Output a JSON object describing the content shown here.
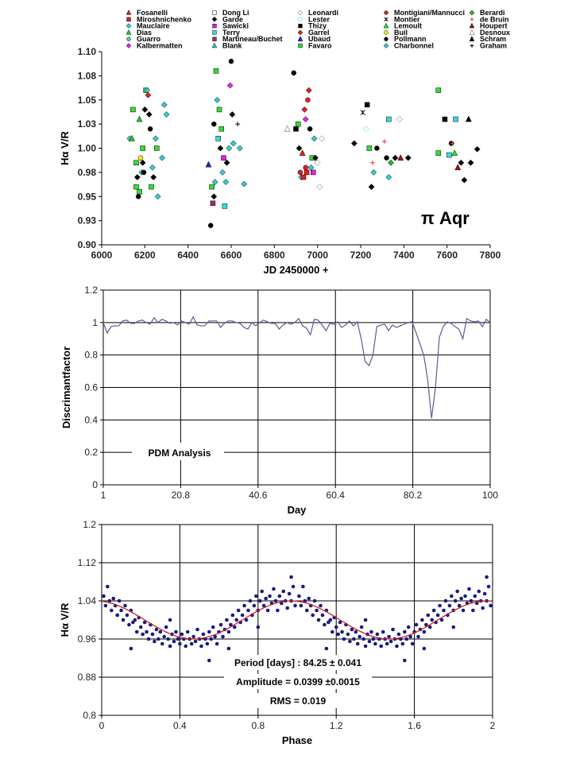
{
  "colors": {
    "pdm_line": "#5b5b9a",
    "phase_points": "#1a1a80",
    "fit_line": "#cc2222",
    "grid": "#000000"
  },
  "chart_data": [
    {
      "type": "scatter",
      "xlabel": "JD 2450000 +",
      "ylabel": "Hα V/R",
      "annotation": "π Aqr",
      "xlim": [
        6000,
        7800
      ],
      "ylim": [
        0.9,
        1.1
      ],
      "xticks": [
        "6000",
        "6200",
        "6400",
        "6600",
        "6800",
        "7000",
        "7200",
        "7400",
        "7600",
        "7800"
      ],
      "yticks": [
        "0.90",
        "0.93",
        "0.95",
        "0.98",
        "1.00",
        "1.03",
        "1.05",
        "1.08",
        "1.10"
      ],
      "grid": false,
      "legend_position": "top",
      "observers": [
        {
          "name": "Fosanelli",
          "shape": "triangle",
          "color": "#e02020"
        },
        {
          "name": "Miroshnichenko",
          "shape": "square",
          "color": "#e02020"
        },
        {
          "name": "Mauclaire",
          "shape": "diamond",
          "color": "#33cccc"
        },
        {
          "name": "Dias",
          "shape": "triangle",
          "color": "#22cc22"
        },
        {
          "name": "Guarro",
          "shape": "circle",
          "color": "#33cccc"
        },
        {
          "name": "Kalbermatten",
          "shape": "diamond",
          "color": "#ee22ee"
        },
        {
          "name": "Dong Li",
          "shape": "square-open",
          "color": "#000000"
        },
        {
          "name": "Garde",
          "shape": "diamond",
          "color": "#000000"
        },
        {
          "name": "Sawicki",
          "shape": "square",
          "color": "#dd22dd"
        },
        {
          "name": "Terry",
          "shape": "square",
          "color": "#33dddd"
        },
        {
          "name": "Martineau/Buchet",
          "shape": "square",
          "color": "#993366"
        },
        {
          "name": "Blank",
          "shape": "triangle",
          "color": "#33cccc"
        },
        {
          "name": "Leonardi",
          "shape": "diamond-open",
          "color": "#555555"
        },
        {
          "name": "Lester",
          "shape": "circle-open",
          "color": "#33ccee"
        },
        {
          "name": "Thizy",
          "shape": "square",
          "color": "#000000"
        },
        {
          "name": "Garrel",
          "shape": "diamond",
          "color": "#e02020"
        },
        {
          "name": "Ubaud",
          "shape": "triangle",
          "color": "#2222dd"
        },
        {
          "name": "Favaro",
          "shape": "square",
          "color": "#33dd33"
        },
        {
          "name": "Montigiani/Mannucci",
          "shape": "circle",
          "color": "#e02020"
        },
        {
          "name": "Montier",
          "shape": "x",
          "color": "#000000"
        },
        {
          "name": "Lemoult",
          "shape": "triangle",
          "color": "#22ee22"
        },
        {
          "name": "Buil",
          "shape": "circle",
          "color": "#eeee22"
        },
        {
          "name": "Pollmann",
          "shape": "circle",
          "color": "#000000"
        },
        {
          "name": "Charbonnel",
          "shape": "diamond",
          "color": "#33cccc"
        },
        {
          "name": "Berardi",
          "shape": "diamond",
          "color": "#22bb22"
        },
        {
          "name": "de Bruin",
          "shape": "plus",
          "color": "#ee3333"
        },
        {
          "name": "Houpert",
          "shape": "triangle",
          "color": "#aa1111"
        },
        {
          "name": "Desnoux",
          "shape": "triangle-open",
          "color": "#444444"
        },
        {
          "name": "Schram",
          "shape": "triangle",
          "color": "#000000"
        },
        {
          "name": "Graham",
          "shape": "plus",
          "color": "#000000"
        }
      ],
      "points": [
        [
          17,
          6145,
          1.04
        ],
        [
          23,
          6130,
          1.01
        ],
        [
          3,
          6140,
          1.01
        ],
        [
          17,
          6160,
          0.985
        ],
        [
          7,
          6165,
          0.97
        ],
        [
          22,
          6170,
          0.95
        ],
        [
          17,
          6175,
          0.955
        ],
        [
          21,
          6180,
          0.99
        ],
        [
          23,
          6185,
          0.975
        ],
        [
          17,
          6190,
          1.0
        ],
        [
          22,
          6195,
          0.975
        ],
        [
          7,
          6200,
          1.04
        ],
        [
          17,
          6205,
          1.06
        ],
        [
          23,
          6210,
          1.06
        ],
        [
          15,
          6215,
          1.055
        ],
        [
          7,
          6220,
          1.035
        ],
        [
          22,
          6225,
          1.02
        ],
        [
          17,
          6230,
          0.96
        ],
        [
          23,
          6235,
          0.98
        ],
        [
          7,
          6240,
          0.97
        ],
        [
          23,
          6250,
          1.01
        ],
        [
          17,
          6255,
          1.0
        ],
        [
          23,
          6260,
          0.95
        ],
        [
          23,
          6280,
          0.99
        ],
        [
          23,
          6290,
          1.045
        ],
        [
          23,
          6300,
          1.035
        ],
        [
          17,
          6160,
          0.96
        ],
        [
          3,
          6175,
          1.03
        ],
        [
          7,
          6190,
          0.985
        ],
        [
          16,
          6495,
          0.983
        ],
        [
          22,
          6505,
          0.92
        ],
        [
          17,
          6510,
          0.96
        ],
        [
          10,
          6515,
          0.943
        ],
        [
          7,
          6520,
          0.95
        ],
        [
          23,
          6525,
          0.965
        ],
        [
          17,
          6530,
          1.08
        ],
        [
          23,
          6535,
          1.05
        ],
        [
          9,
          6540,
          1.01
        ],
        [
          17,
          6545,
          1.04
        ],
        [
          7,
          6550,
          1.0
        ],
        [
          23,
          6560,
          0.975
        ],
        [
          8,
          6565,
          0.99
        ],
        [
          9,
          6570,
          0.94
        ],
        [
          23,
          6575,
          0.965
        ],
        [
          7,
          6580,
          0.985
        ],
        [
          23,
          6590,
          1.0
        ],
        [
          5,
          6595,
          1.065
        ],
        [
          22,
          6600,
          1.09
        ],
        [
          7,
          6605,
          1.035
        ],
        [
          23,
          6610,
          1.005
        ],
        [
          29,
          6630,
          1.025
        ],
        [
          23,
          6640,
          1.0
        ],
        [
          23,
          6660,
          0.963
        ],
        [
          17,
          6555,
          1.02
        ],
        [
          22,
          6520,
          1.025
        ],
        [
          22,
          6890,
          1.078
        ],
        [
          27,
          6860,
          1.02
        ],
        [
          14,
          6900,
          1.02
        ],
        [
          17,
          6910,
          1.025
        ],
        [
          7,
          6915,
          1.0
        ],
        [
          18,
          6920,
          0.975
        ],
        [
          23,
          6925,
          0.97
        ],
        [
          0,
          6930,
          0.995
        ],
        [
          15,
          6940,
          1.04
        ],
        [
          5,
          6945,
          1.03
        ],
        [
          1,
          6950,
          0.975
        ],
        [
          18,
          6955,
          1.05
        ],
        [
          15,
          6960,
          1.06
        ],
        [
          22,
          6965,
          1.02
        ],
        [
          23,
          6970,
          0.98
        ],
        [
          17,
          6975,
          0.99
        ],
        [
          8,
          6980,
          0.975
        ],
        [
          7,
          6990,
          0.99
        ],
        [
          12,
          7000,
          0.985
        ],
        [
          12,
          7010,
          0.96
        ],
        [
          12,
          7020,
          1.01
        ],
        [
          23,
          6985,
          1.01
        ],
        [
          1,
          6935,
          0.97
        ],
        [
          18,
          6945,
          0.98
        ],
        [
          19,
          7210,
          1.037
        ],
        [
          14,
          7230,
          1.045
        ],
        [
          13,
          7225,
          1.02
        ],
        [
          17,
          7240,
          1.0
        ],
        [
          7,
          7250,
          0.96
        ],
        [
          25,
          7255,
          0.985
        ],
        [
          23,
          7260,
          0.975
        ],
        [
          22,
          7275,
          1.0
        ],
        [
          25,
          7310,
          1.007
        ],
        [
          22,
          7320,
          0.99
        ],
        [
          23,
          7330,
          0.97
        ],
        [
          24,
          7340,
          0.985
        ],
        [
          7,
          7360,
          0.99
        ],
        [
          12,
          7380,
          1.03
        ],
        [
          7,
          7420,
          0.99
        ],
        [
          26,
          7385,
          0.99
        ],
        [
          9,
          7330,
          1.03
        ],
        [
          7,
          7170,
          1.005
        ],
        [
          17,
          7560,
          1.06
        ],
        [
          17,
          7560,
          0.995
        ],
        [
          14,
          7590,
          1.03
        ],
        [
          9,
          7610,
          0.993
        ],
        [
          22,
          7620,
          1.005
        ],
        [
          25,
          7625,
          1.005
        ],
        [
          9,
          7640,
          1.03
        ],
        [
          26,
          7650,
          0.98
        ],
        [
          7,
          7665,
          0.985
        ],
        [
          28,
          7700,
          1.03
        ],
        [
          7,
          7710,
          0.985
        ],
        [
          7,
          7740,
          0.999
        ],
        [
          7,
          7680,
          0.967
        ],
        [
          20,
          7635,
          0.995
        ]
      ]
    },
    {
      "type": "line",
      "xlabel": "Day",
      "ylabel": "Discrimantfactor",
      "annotation": "PDM Analysis",
      "xlim": [
        1,
        100
      ],
      "ylim": [
        0,
        1.2
      ],
      "xticks": [
        "1",
        "20.8",
        "40.6",
        "60.4",
        "80.2",
        "100"
      ],
      "yticks": [
        "0",
        "0.2",
        "0.4",
        "0.6",
        "0.8",
        "1",
        "1.2"
      ],
      "grid": true,
      "x_start": 1,
      "x_step": 1,
      "values": [
        1.0,
        0.935,
        0.975,
        0.98,
        0.98,
        1.01,
        1.015,
        0.995,
        0.995,
        1.01,
        1.015,
        1.0,
        0.99,
        1.03,
        1.0,
        1.02,
        1.01,
        0.995,
        1.0,
        0.985,
        1.01,
        1.0,
        0.99,
        1.035,
        0.985,
        0.98,
        0.98,
        1.01,
        1.01,
        1.01,
        0.97,
        0.995,
        1.01,
        1.01,
        1.0,
        0.995,
        0.97,
        0.96,
        1.0,
        0.98,
        1.0,
        1.015,
        1.005,
        0.995,
        0.995,
        0.96,
        0.985,
        1.0,
        0.99,
        1.0,
        1.025,
        0.98,
        0.965,
        0.925,
        1.02,
        1.015,
        0.985,
        0.95,
        0.995,
        0.99,
        1.005,
        0.97,
        0.985,
        1.01,
        0.98,
        1.005,
        0.9,
        0.76,
        0.735,
        0.8,
        0.975,
        0.985,
        0.99,
        0.95,
        0.985,
        0.97,
        0.98,
        0.99,
        1.0,
        1.005,
        0.94,
        0.87,
        0.8,
        0.65,
        0.41,
        0.6,
        0.91,
        0.975,
        1.005,
        0.995,
        0.975,
        0.96,
        0.9,
        1.025,
        1.01,
        1.005,
        1.01,
        0.975,
        1.02,
        1.0
      ]
    },
    {
      "type": "scatter",
      "xlabel": "Phase",
      "ylabel": "Hα V/R",
      "xlim": [
        0,
        2
      ],
      "ylim": [
        0.8,
        1.2
      ],
      "xticks": [
        "0",
        "0.4",
        "0.8",
        "1.2",
        "1.6",
        "2"
      ],
      "yticks": [
        "0.8",
        "0.88",
        "0.96",
        "1.04",
        "1.12",
        "1.2"
      ],
      "grid": true,
      "annotations": [
        "Period [days] : 84.25 ± 0.041",
        "Amplitude = 0.0399 ±0.0015",
        "RMS = 0.019"
      ],
      "fit": {
        "mean": 1.0,
        "amplitude": 0.0399,
        "phase_of_max": 0.97
      },
      "points_one_cycle": [
        [
          0.01,
          1.05
        ],
        [
          0.02,
          1.03
        ],
        [
          0.03,
          1.07
        ],
        [
          0.04,
          1.04
        ],
        [
          0.05,
          1.02
        ],
        [
          0.06,
          1.045
        ],
        [
          0.07,
          1.03
        ],
        [
          0.08,
          1.01
        ],
        [
          0.09,
          1.04
        ],
        [
          0.1,
          1.02
        ],
        [
          0.11,
          1.0
        ],
        [
          0.12,
          1.03
        ],
        [
          0.13,
          1.01
        ],
        [
          0.14,
          0.99
        ],
        [
          0.15,
          1.02
        ],
        [
          0.16,
          0.995
        ],
        [
          0.17,
          1.0
        ],
        [
          0.18,
          0.975
        ],
        [
          0.19,
          1.005
        ],
        [
          0.2,
          0.985
        ],
        [
          0.21,
          0.97
        ],
        [
          0.22,
          0.995
        ],
        [
          0.23,
          0.975
        ],
        [
          0.24,
          0.96
        ],
        [
          0.25,
          0.99
        ],
        [
          0.26,
          0.97
        ],
        [
          0.27,
          0.955
        ],
        [
          0.28,
          0.98
        ],
        [
          0.29,
          0.96
        ],
        [
          0.3,
          0.975
        ],
        [
          0.31,
          0.95
        ],
        [
          0.32,
          0.965
        ],
        [
          0.33,
          0.985
        ],
        [
          0.34,
          0.96
        ],
        [
          0.35,
          0.945
        ],
        [
          0.36,
          0.97
        ],
        [
          0.37,
          0.955
        ],
        [
          0.38,
          0.975
        ],
        [
          0.39,
          0.96
        ],
        [
          0.4,
          0.95
        ],
        [
          0.41,
          0.97
        ],
        [
          0.42,
          0.96
        ],
        [
          0.43,
          0.945
        ],
        [
          0.44,
          0.975
        ],
        [
          0.45,
          0.96
        ],
        [
          0.46,
          0.95
        ],
        [
          0.47,
          0.965
        ],
        [
          0.48,
          0.955
        ],
        [
          0.49,
          0.98
        ],
        [
          0.5,
          0.96
        ],
        [
          0.51,
          0.945
        ],
        [
          0.52,
          0.97
        ],
        [
          0.53,
          0.96
        ],
        [
          0.54,
          0.95
        ],
        [
          0.55,
          0.975
        ],
        [
          0.56,
          0.96
        ],
        [
          0.57,
          0.985
        ],
        [
          0.58,
          0.965
        ],
        [
          0.59,
          0.95
        ],
        [
          0.6,
          0.975
        ],
        [
          0.61,
          0.99
        ],
        [
          0.62,
          0.965
        ],
        [
          0.63,
          0.98
        ],
        [
          0.64,
          1.0
        ],
        [
          0.65,
          0.975
        ],
        [
          0.66,
          0.99
        ],
        [
          0.67,
          1.01
        ],
        [
          0.68,
          0.985
        ],
        [
          0.69,
          1.0
        ],
        [
          0.7,
          1.02
        ],
        [
          0.71,
          0.995
        ],
        [
          0.72,
          1.01
        ],
        [
          0.73,
          1.03
        ],
        [
          0.74,
          1.0
        ],
        [
          0.75,
          1.02
        ],
        [
          0.76,
          1.04
        ],
        [
          0.77,
          1.01
        ],
        [
          0.78,
          1.03
        ],
        [
          0.79,
          1.05
        ],
        [
          0.8,
          1.02
        ],
        [
          0.81,
          1.04
        ],
        [
          0.82,
          1.06
        ],
        [
          0.83,
          1.03
        ],
        [
          0.84,
          1.045
        ],
        [
          0.85,
          1.02
        ],
        [
          0.86,
          1.05
        ],
        [
          0.87,
          1.035
        ],
        [
          0.88,
          1.065
        ],
        [
          0.89,
          1.04
        ],
        [
          0.9,
          1.02
        ],
        [
          0.91,
          1.05
        ],
        [
          0.92,
          1.035
        ],
        [
          0.93,
          1.06
        ],
        [
          0.94,
          1.04
        ],
        [
          0.95,
          1.025
        ],
        [
          0.96,
          1.055
        ],
        [
          0.97,
          1.04
        ],
        [
          0.98,
          1.07
        ],
        [
          0.99,
          1.03
        ],
        [
          0.15,
          0.94
        ],
        [
          0.55,
          0.915
        ],
        [
          0.8,
          0.985
        ],
        [
          0.35,
          1.0
        ],
        [
          0.65,
          0.94
        ],
        [
          0.97,
          1.09
        ]
      ]
    }
  ]
}
